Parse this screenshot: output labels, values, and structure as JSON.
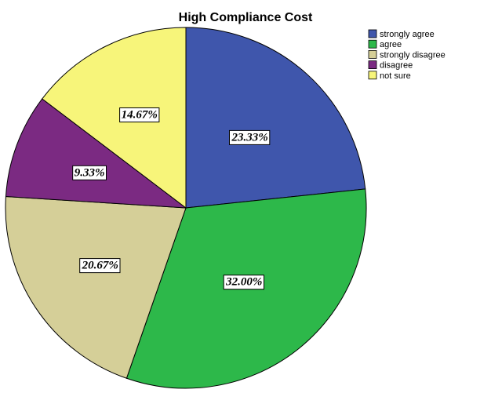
{
  "chart_data": {
    "type": "pie",
    "title": "High Compliance Cost",
    "legend_position": "top-right",
    "categories": [
      "strongly agree",
      "agree",
      "strongly disagree",
      "disagree",
      "not sure"
    ],
    "values": [
      23.33,
      32.0,
      20.67,
      9.33,
      14.67
    ],
    "labels": [
      "23.33%",
      "32.00%",
      "20.67%",
      "9.33%",
      "14.67%"
    ],
    "colors": [
      "#3f56ac",
      "#2db84a",
      "#d5cf98",
      "#7b2a82",
      "#f7f57a"
    ],
    "start_angle": "12 o'clock",
    "direction": "clockwise"
  }
}
